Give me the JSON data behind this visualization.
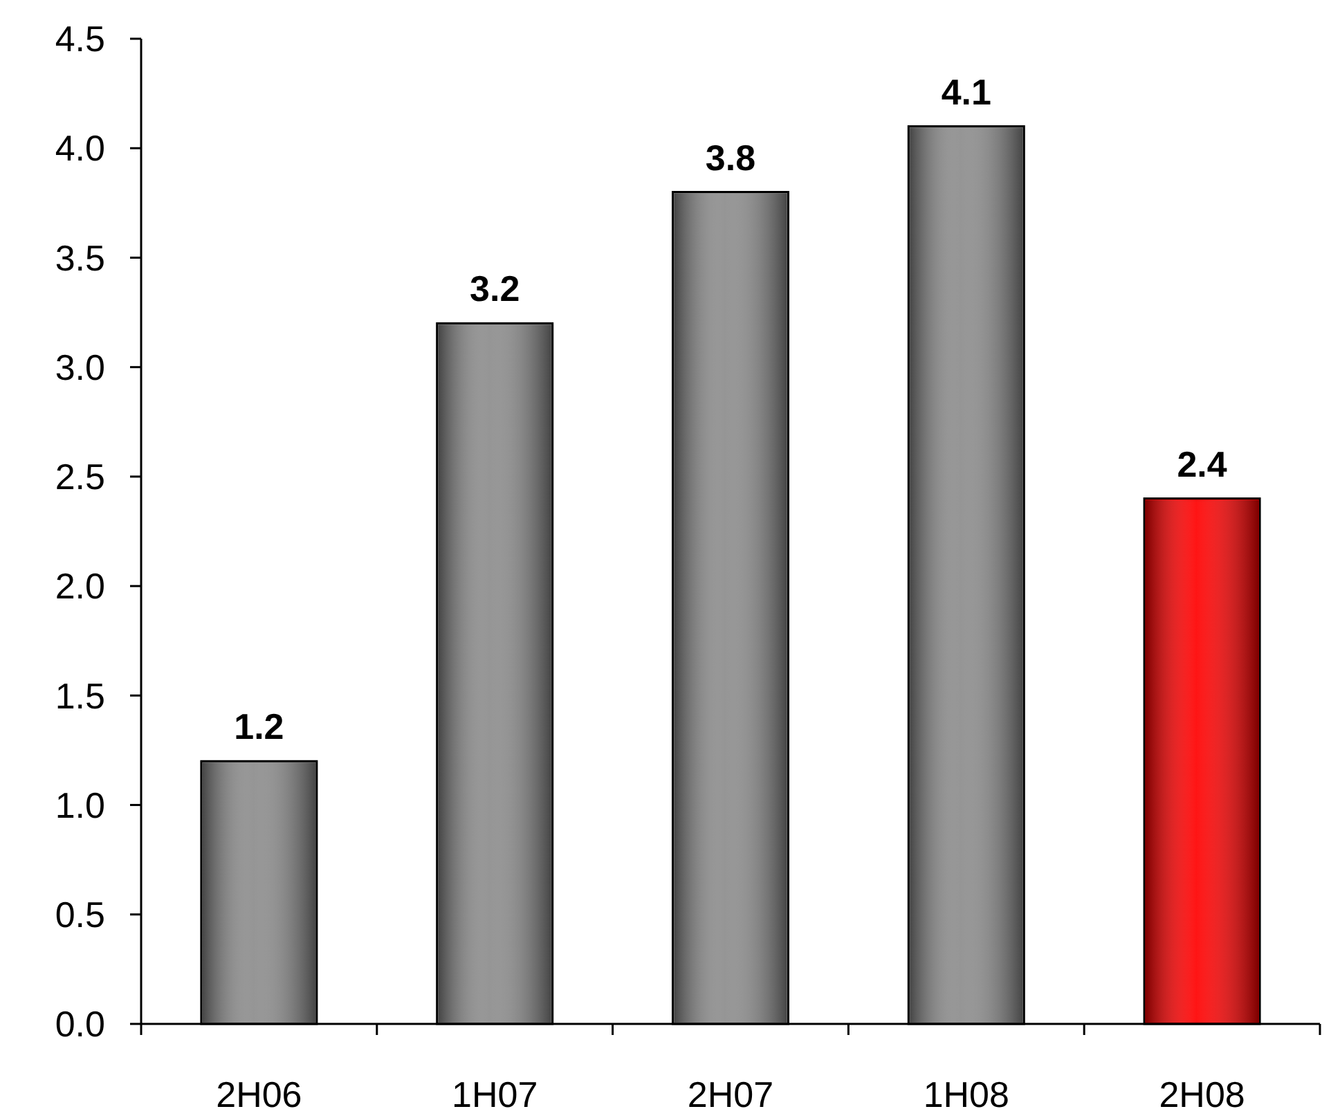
{
  "chart_data": {
    "type": "bar",
    "categories": [
      "2H06",
      "1H07",
      "2H07",
      "1H08",
      "2H08"
    ],
    "values": [
      1.2,
      3.2,
      3.8,
      4.1,
      2.4
    ],
    "colors": [
      "#8c8c8c",
      "#8c8c8c",
      "#8c8c8c",
      "#8c8c8c",
      "#ff0000"
    ],
    "ylim": [
      0,
      4.5
    ],
    "yticks": [
      {
        "value": 0,
        "label": "0.0"
      },
      {
        "value": 0.5,
        "label": "0.5"
      },
      {
        "value": 1,
        "label": "1.0"
      },
      {
        "value": 1.5,
        "label": "1.5"
      },
      {
        "value": 2,
        "label": "2.0"
      },
      {
        "value": 2.5,
        "label": "2.5"
      },
      {
        "value": 3,
        "label": "3.0"
      },
      {
        "value": 3.5,
        "label": "3.5"
      },
      {
        "value": 4,
        "label": "4.0"
      },
      {
        "value": 4.5,
        "label": "4.5"
      }
    ],
    "data_labels": true,
    "grid": false
  }
}
